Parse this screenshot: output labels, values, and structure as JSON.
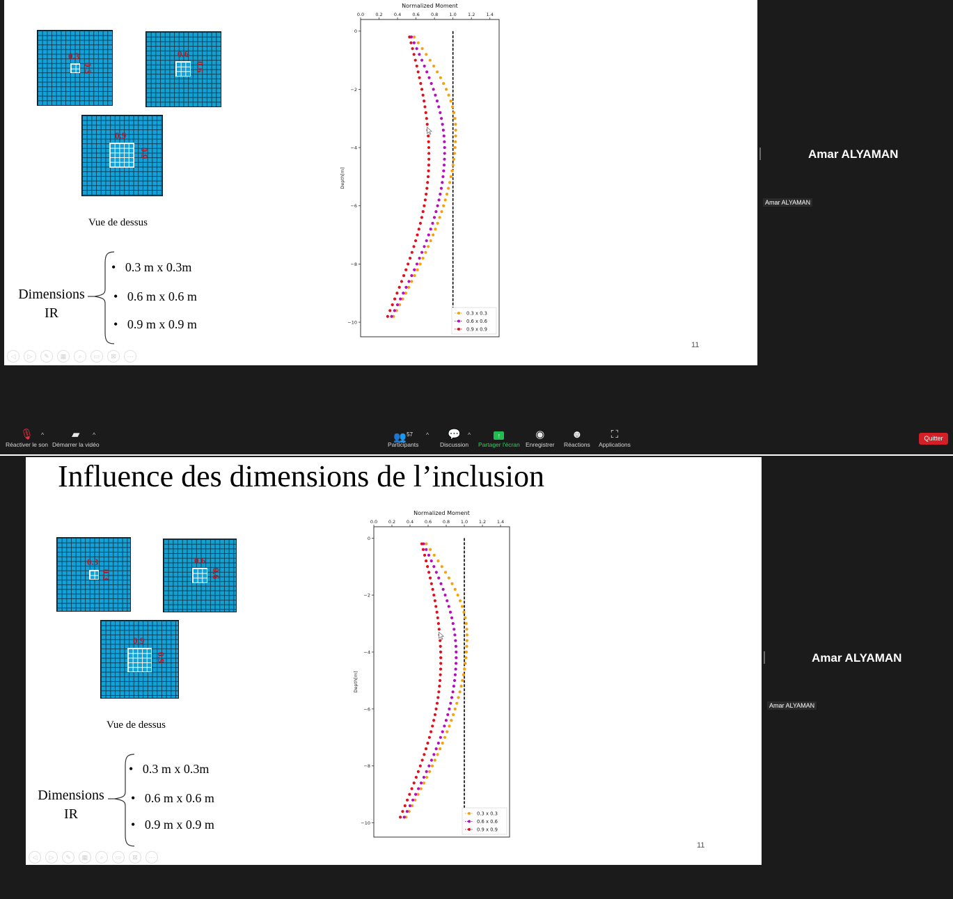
{
  "slide": {
    "title": "Influence des dimensions de l’inclusion",
    "grid_labels": {
      "small": "0.3",
      "medium": "0.6",
      "large": "0.9"
    },
    "caption": "Vue de dessus",
    "dims_label_line1": "Dimensions",
    "dims_label_line2": "IR",
    "dims_items": [
      "0.3 m x 0.3m",
      "0.6 m x 0.6 m",
      "0.9 m x 0.9 m"
    ],
    "bullet": "•",
    "page_number": "11"
  },
  "chart_data": {
    "type": "scatter",
    "title": "Normalized Moment",
    "xlabel": "Normalized Moment",
    "ylabel": "Depth[m]",
    "xlim": [
      0.0,
      1.5
    ],
    "ylim": [
      -10.5,
      0.4
    ],
    "xticks": [
      "0.0",
      "0.2",
      "0.4",
      "0.6",
      "0.8",
      "1.0",
      "1.2",
      "1.4"
    ],
    "yticks": [
      "0",
      "−2",
      "−4",
      "−6",
      "−8",
      "−10"
    ],
    "legend_position": "lower right",
    "reference_line_x": 1.0,
    "series": [
      {
        "name": "0.3 x 0.3",
        "color": "#f5a10c",
        "surface": 0.58,
        "peak": 1.03,
        "bottom": 0.34,
        "top_depth": -0.2,
        "bottom_depth": -9.9,
        "peak_depth": -3.4
      },
      {
        "name": "0.6 x 0.6",
        "color": "#b70dbf",
        "surface": 0.55,
        "peak": 0.91,
        "bottom": 0.32,
        "top_depth": -0.2,
        "bottom_depth": -9.9,
        "peak_depth": -4.1
      },
      {
        "name": "0.9 x 0.9",
        "color": "#e0111d",
        "surface": 0.53,
        "peak": 0.74,
        "bottom": 0.28,
        "top_depth": -0.2,
        "bottom_depth": -9.9,
        "peak_depth": -4.3
      }
    ]
  },
  "participant": {
    "name": "Amar ALYAMAN",
    "tag": "Amar ALYAMAN"
  },
  "toolbar": {
    "unmute": "Réactiver le son",
    "start_video": "Démarrer la vidéo",
    "participants": "Participants",
    "participants_count": "57",
    "chat": "Discussion",
    "share": "Partager l'écran",
    "record": "Enregistrer",
    "reactions": "Réactions",
    "apps": "Applications",
    "quit": "Quitter"
  },
  "colors": {
    "accent_green": "#2fd15e",
    "quit_red": "#d32027",
    "grid_blue": "#12a2d8",
    "label_red": "#c0141e"
  },
  "icons": [
    "mic-muted-icon",
    "video-off-icon",
    "participants-icon",
    "chat-icon",
    "share-screen-icon",
    "record-icon",
    "reactions-icon",
    "apps-icon"
  ]
}
